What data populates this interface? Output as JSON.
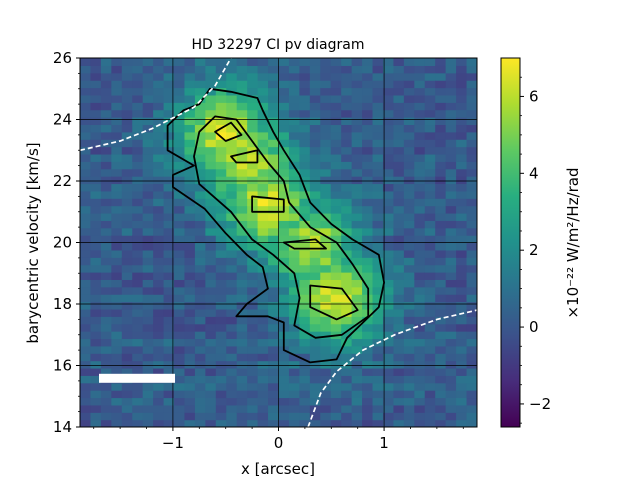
{
  "chart_data": {
    "type": "heatmap",
    "title": "HD 32297 CI pv diagram",
    "xlabel": "x [arcsec]",
    "ylabel": "barycentric velocity [km/s]",
    "xlim": [
      -1.88,
      1.88
    ],
    "ylim": [
      14,
      26
    ],
    "x_ticks": [
      -1,
      0,
      1
    ],
    "x_tick_labels": [
      "−1",
      "0",
      "1"
    ],
    "y_ticks": [
      14,
      16,
      18,
      20,
      22,
      24,
      26
    ],
    "y_tick_labels": [
      "14",
      "16",
      "18",
      "20",
      "22",
      "24",
      "26"
    ],
    "grid": true,
    "colormap": "viridis",
    "colorbar": {
      "label": "×10⁻²² W/m²/Hz/rad",
      "range": [
        -2.6,
        7
      ],
      "ticks": [
        -2,
        0,
        2,
        4,
        6
      ],
      "tick_labels": [
        "−2",
        "0",
        "2",
        "4",
        "6"
      ]
    },
    "emission_ridge": [
      {
        "x": -0.5,
        "v": 23.6,
        "peak": 6.2
      },
      {
        "x": -0.3,
        "v": 22.6,
        "peak": 5.8
      },
      {
        "x": -0.1,
        "v": 21.2,
        "peak": 6.0
      },
      {
        "x": 0.3,
        "v": 19.9,
        "peak": 5.6
      },
      {
        "x": 0.55,
        "v": 18.2,
        "peak": 6.3
      }
    ],
    "contours": {
      "outer": [
        [
          -0.75,
          24.5
        ],
        [
          -0.65,
          25.0
        ],
        [
          -0.45,
          24.9
        ],
        [
          -0.2,
          24.7
        ],
        [
          -0.15,
          24.3
        ],
        [
          -0.05,
          23.6
        ],
        [
          0.05,
          23.0
        ],
        [
          0.2,
          22.2
        ],
        [
          0.3,
          21.3
        ],
        [
          0.5,
          20.6
        ],
        [
          0.7,
          20.1
        ],
        [
          0.95,
          19.6
        ],
        [
          1.0,
          18.7
        ],
        [
          0.95,
          17.9
        ],
        [
          0.8,
          17.4
        ],
        [
          0.65,
          16.9
        ],
        [
          0.55,
          16.2
        ],
        [
          0.3,
          16.1
        ],
        [
          0.05,
          16.5
        ],
        [
          0.05,
          17.4
        ],
        [
          -0.1,
          17.6
        ],
        [
          -0.4,
          17.6
        ],
        [
          -0.3,
          18.0
        ],
        [
          -0.1,
          18.5
        ],
        [
          -0.15,
          19.2
        ],
        [
          -0.3,
          19.6
        ],
        [
          -0.5,
          20.3
        ],
        [
          -0.7,
          21.1
        ],
        [
          -1.0,
          21.8
        ],
        [
          -1.0,
          22.2
        ],
        [
          -0.8,
          22.5
        ],
        [
          -1.05,
          23.0
        ],
        [
          -1.05,
          23.8
        ],
        [
          -0.9,
          24.3
        ]
      ],
      "inner": [
        [
          -0.6,
          24.1
        ],
        [
          -0.4,
          24.0
        ],
        [
          -0.25,
          23.3
        ],
        [
          -0.1,
          22.6
        ],
        [
          0.05,
          22.0
        ],
        [
          0.1,
          21.3
        ],
        [
          0.3,
          20.5
        ],
        [
          0.55,
          20.0
        ],
        [
          0.7,
          19.3
        ],
        [
          0.85,
          18.5
        ],
        [
          0.85,
          17.6
        ],
        [
          0.6,
          17.0
        ],
        [
          0.35,
          16.9
        ],
        [
          0.15,
          17.3
        ],
        [
          0.2,
          18.2
        ],
        [
          0.15,
          19.0
        ],
        [
          -0.05,
          19.6
        ],
        [
          -0.25,
          20.1
        ],
        [
          -0.45,
          21.0
        ],
        [
          -0.75,
          21.9
        ],
        [
          -0.8,
          22.8
        ],
        [
          -0.75,
          23.6
        ]
      ],
      "peaks": [
        [
          [
            -0.6,
            23.6
          ],
          [
            -0.45,
            23.9
          ],
          [
            -0.35,
            23.5
          ],
          [
            -0.5,
            23.3
          ]
        ],
        [
          [
            -0.45,
            22.8
          ],
          [
            -0.2,
            23.0
          ],
          [
            -0.2,
            22.6
          ],
          [
            -0.4,
            22.6
          ]
        ],
        [
          [
            -0.25,
            21.5
          ],
          [
            0.05,
            21.4
          ],
          [
            0.05,
            21.0
          ],
          [
            -0.25,
            21.0
          ]
        ],
        [
          [
            0.05,
            20.0
          ],
          [
            0.35,
            20.1
          ],
          [
            0.45,
            19.8
          ],
          [
            0.15,
            19.8
          ]
        ],
        [
          [
            0.3,
            18.6
          ],
          [
            0.6,
            18.5
          ],
          [
            0.75,
            17.8
          ],
          [
            0.55,
            17.5
          ],
          [
            0.3,
            17.9
          ]
        ]
      ]
    },
    "keplerian_limits": [
      {
        "points": [
          [
            -1.88,
            23.0
          ],
          [
            -1.5,
            23.3
          ],
          [
            -1.2,
            23.7
          ],
          [
            -0.8,
            24.4
          ],
          [
            -0.6,
            25.1
          ],
          [
            -0.45,
            26.0
          ]
        ]
      },
      {
        "points": [
          [
            0.28,
            14.0
          ],
          [
            0.4,
            15.1
          ],
          [
            0.55,
            15.8
          ],
          [
            0.8,
            16.5
          ],
          [
            1.1,
            17.0
          ],
          [
            1.5,
            17.5
          ],
          [
            1.88,
            17.8
          ]
        ]
      }
    ],
    "beam_bar": {
      "x_start": -1.7,
      "x_end": -0.98,
      "v": 15.6
    }
  }
}
